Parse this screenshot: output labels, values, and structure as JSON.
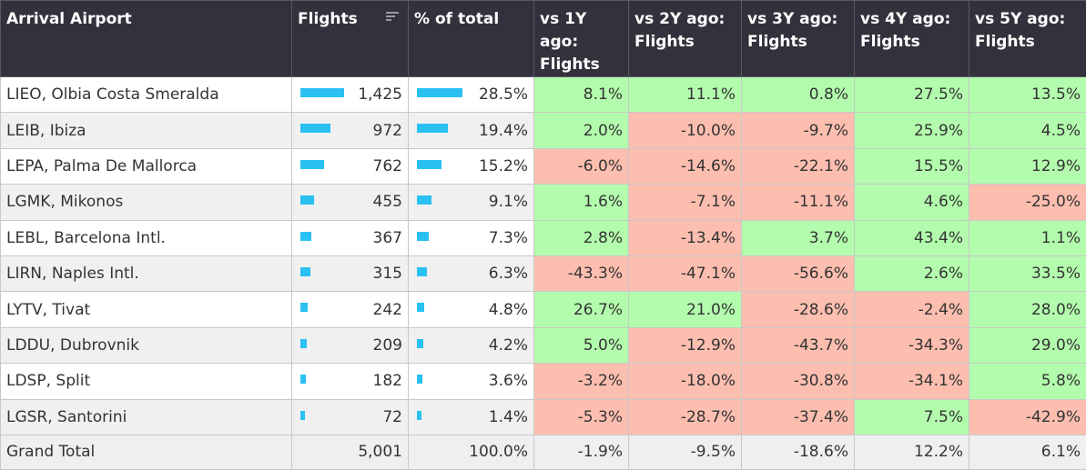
{
  "header": {
    "airport": "Arrival Airport",
    "flights": "Flights",
    "pct": "% of total",
    "y1": "vs 1Y ago: Flights",
    "y2": "vs 2Y ago: Flights",
    "y3": "vs 3Y ago: Flights",
    "y4": "vs 4Y ago: Flights",
    "y5": "vs 5Y ago: Flights",
    "sort_icon": "sort-descending-icon"
  },
  "colors": {
    "bar": "#2ac1f2",
    "positive": "#b3fcad",
    "negative": "#fcbeaf",
    "header": "#33323c"
  },
  "rows": [
    {
      "airport": "LIEO, Olbia Costa Smeralda",
      "flights": "1,425",
      "flights_n": 1425,
      "pct": "28.5%",
      "pct_n": 28.5,
      "y1": "8.1%",
      "y2": "11.1%",
      "y3": "0.8%",
      "y4": "27.5%",
      "y5": "13.5%"
    },
    {
      "airport": "LEIB, Ibiza",
      "flights": "972",
      "flights_n": 972,
      "pct": "19.4%",
      "pct_n": 19.4,
      "y1": "2.0%",
      "y2": "-10.0%",
      "y3": "-9.7%",
      "y4": "25.9%",
      "y5": "4.5%"
    },
    {
      "airport": "LEPA, Palma De Mallorca",
      "flights": "762",
      "flights_n": 762,
      "pct": "15.2%",
      "pct_n": 15.2,
      "y1": "-6.0%",
      "y2": "-14.6%",
      "y3": "-22.1%",
      "y4": "15.5%",
      "y5": "12.9%"
    },
    {
      "airport": "LGMK, Mikonos",
      "flights": "455",
      "flights_n": 455,
      "pct": "9.1%",
      "pct_n": 9.1,
      "y1": "1.6%",
      "y2": "-7.1%",
      "y3": "-11.1%",
      "y4": "4.6%",
      "y5": "-25.0%"
    },
    {
      "airport": "LEBL, Barcelona Intl.",
      "flights": "367",
      "flights_n": 367,
      "pct": "7.3%",
      "pct_n": 7.3,
      "y1": "2.8%",
      "y2": "-13.4%",
      "y3": "3.7%",
      "y4": "43.4%",
      "y5": "1.1%"
    },
    {
      "airport": "LIRN, Naples Intl.",
      "flights": "315",
      "flights_n": 315,
      "pct": "6.3%",
      "pct_n": 6.3,
      "y1": "-43.3%",
      "y2": "-47.1%",
      "y3": "-56.6%",
      "y4": "2.6%",
      "y5": "33.5%"
    },
    {
      "airport": "LYTV, Tivat",
      "flights": "242",
      "flights_n": 242,
      "pct": "4.8%",
      "pct_n": 4.8,
      "y1": "26.7%",
      "y2": "21.0%",
      "y3": "-28.6%",
      "y4": "-2.4%",
      "y5": "28.0%"
    },
    {
      "airport": "LDDU, Dubrovnik",
      "flights": "209",
      "flights_n": 209,
      "pct": "4.2%",
      "pct_n": 4.2,
      "y1": "5.0%",
      "y2": "-12.9%",
      "y3": "-43.7%",
      "y4": "-34.3%",
      "y5": "29.0%"
    },
    {
      "airport": "LDSP, Split",
      "flights": "182",
      "flights_n": 182,
      "pct": "3.6%",
      "pct_n": 3.6,
      "y1": "-3.2%",
      "y2": "-18.0%",
      "y3": "-30.8%",
      "y4": "-34.1%",
      "y5": "5.8%"
    },
    {
      "airport": "LGSR, Santorini",
      "flights": "72",
      "flights_n": 72,
      "pct": "1.4%",
      "pct_n": 1.4,
      "y1": "-5.3%",
      "y2": "-28.7%",
      "y3": "-37.4%",
      "y4": "7.5%",
      "y5": "-42.9%"
    }
  ],
  "total": {
    "airport": "Grand Total",
    "flights": "5,001",
    "pct": "100.0%",
    "y1": "-1.9%",
    "y2": "-9.5%",
    "y3": "-18.6%",
    "y4": "12.2%",
    "y5": "6.1%"
  }
}
